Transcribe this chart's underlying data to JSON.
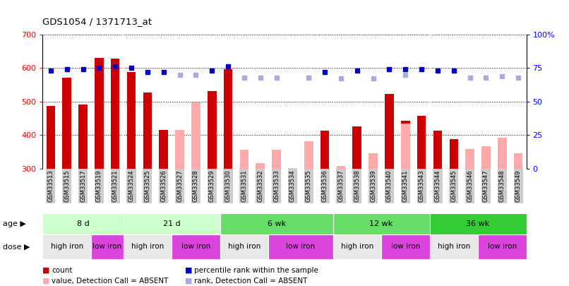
{
  "title": "GDS1054 / 1371713_at",
  "samples": [
    "GSM33513",
    "GSM33515",
    "GSM33517",
    "GSM33519",
    "GSM33521",
    "GSM33524",
    "GSM33525",
    "GSM33526",
    "GSM33527",
    "GSM33528",
    "GSM33529",
    "GSM33530",
    "GSM33531",
    "GSM33532",
    "GSM33533",
    "GSM33534",
    "GSM33535",
    "GSM33536",
    "GSM33537",
    "GSM33538",
    "GSM33539",
    "GSM33540",
    "GSM33541",
    "GSM33543",
    "GSM33544",
    "GSM33545",
    "GSM33546",
    "GSM33547",
    "GSM33548",
    "GSM33549"
  ],
  "count_values": [
    487,
    572,
    492,
    630,
    628,
    588,
    527,
    415,
    null,
    null,
    530,
    597,
    null,
    null,
    null,
    null,
    null,
    413,
    null,
    425,
    null,
    522,
    443,
    458,
    413,
    388,
    null,
    null,
    null,
    null
  ],
  "count_absent": [
    null,
    null,
    null,
    null,
    null,
    null,
    null,
    null,
    415,
    498,
    null,
    null,
    356,
    316,
    357,
    null,
    381,
    null,
    309,
    null,
    346,
    null,
    435,
    null,
    null,
    null,
    358,
    367,
    393,
    347
  ],
  "rank_values": [
    73,
    74,
    74,
    75,
    76,
    75,
    72,
    72,
    null,
    null,
    73,
    76,
    null,
    null,
    null,
    null,
    null,
    72,
    null,
    73,
    null,
    74,
    74,
    74,
    73,
    73,
    null,
    null,
    null,
    null
  ],
  "rank_absent": [
    null,
    null,
    null,
    null,
    null,
    null,
    null,
    null,
    70,
    70,
    null,
    null,
    68,
    68,
    68,
    null,
    68,
    null,
    67,
    null,
    67,
    null,
    70,
    null,
    null,
    null,
    68,
    68,
    69,
    68
  ],
  "age_groups": [
    {
      "label": "8 d",
      "start": 0,
      "end": 5,
      "color": "#ccffcc"
    },
    {
      "label": "21 d",
      "start": 5,
      "end": 11,
      "color": "#ccffcc"
    },
    {
      "label": "6 wk",
      "start": 11,
      "end": 18,
      "color": "#66dd66"
    },
    {
      "label": "12 wk",
      "start": 18,
      "end": 24,
      "color": "#66dd66"
    },
    {
      "label": "36 wk",
      "start": 24,
      "end": 30,
      "color": "#33cc33"
    }
  ],
  "dose_groups": [
    {
      "label": "high iron",
      "start": 0,
      "end": 3,
      "color": "#e8e8e8"
    },
    {
      "label": "low iron",
      "start": 3,
      "end": 5,
      "color": "#dd44dd"
    },
    {
      "label": "high iron",
      "start": 5,
      "end": 8,
      "color": "#e8e8e8"
    },
    {
      "label": "low iron",
      "start": 8,
      "end": 11,
      "color": "#dd44dd"
    },
    {
      "label": "high iron",
      "start": 11,
      "end": 14,
      "color": "#e8e8e8"
    },
    {
      "label": "low iron",
      "start": 14,
      "end": 18,
      "color": "#dd44dd"
    },
    {
      "label": "high iron",
      "start": 18,
      "end": 21,
      "color": "#e8e8e8"
    },
    {
      "label": "low iron",
      "start": 21,
      "end": 24,
      "color": "#dd44dd"
    },
    {
      "label": "high iron",
      "start": 24,
      "end": 27,
      "color": "#e8e8e8"
    },
    {
      "label": "low iron",
      "start": 27,
      "end": 30,
      "color": "#dd44dd"
    }
  ],
  "ylim": [
    300,
    700
  ],
  "y2lim": [
    0,
    100
  ],
  "yticks": [
    300,
    400,
    500,
    600,
    700
  ],
  "y2ticks": [
    0,
    25,
    50,
    75,
    100
  ],
  "grid_values": [
    400,
    500,
    600,
    700
  ],
  "bar_color": "#cc0000",
  "bar_absent_color": "#ffaaaa",
  "rank_color": "#0000cc",
  "rank_absent_color": "#aaaadd",
  "bg_color": "#ffffff",
  "tick_bg_color": "#cccccc",
  "legend_items": [
    {
      "label": "count",
      "color": "#cc0000"
    },
    {
      "label": "percentile rank within the sample",
      "color": "#0000cc"
    },
    {
      "label": "value, Detection Call = ABSENT",
      "color": "#ffaaaa"
    },
    {
      "label": "rank, Detection Call = ABSENT",
      "color": "#aaaadd"
    }
  ]
}
